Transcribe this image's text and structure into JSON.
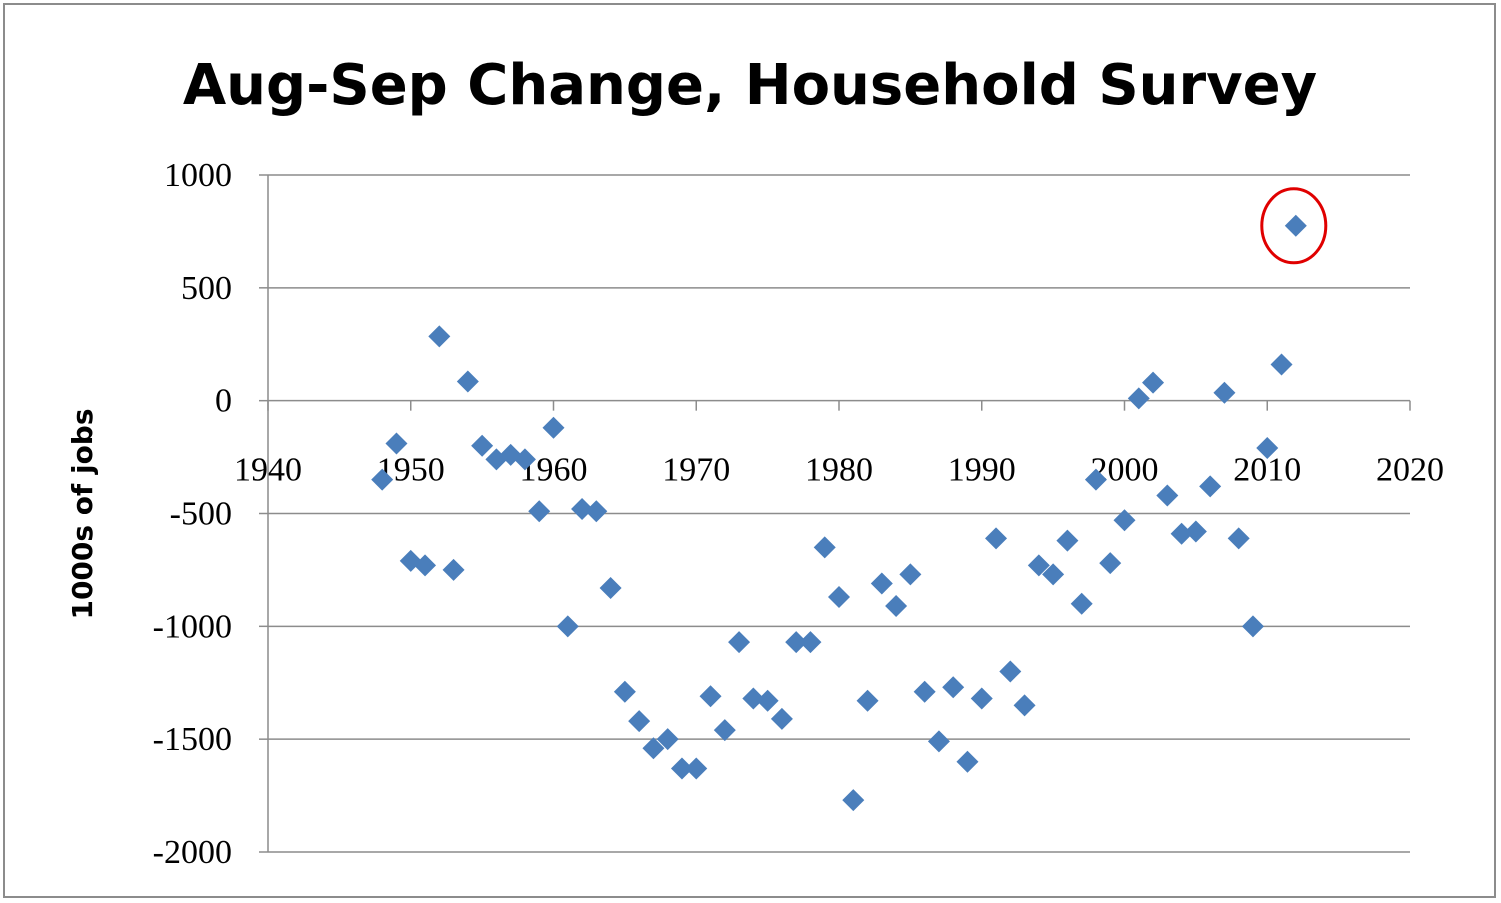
{
  "chart_data": {
    "type": "scatter",
    "title": "Aug-Sep Change, Household Survey",
    "xlabel": "",
    "ylabel": "1000s of jobs",
    "xlim": [
      1940,
      2020
    ],
    "ylim": [
      -2000,
      1000
    ],
    "x_ticks": [
      "1940",
      "1950",
      "1960",
      "1970",
      "1980",
      "1990",
      "2000",
      "2010",
      "2020"
    ],
    "y_ticks": [
      "1000",
      "500",
      "0",
      "-500",
      "-1000",
      "-1500",
      "-2000"
    ],
    "grid": true,
    "legend": "none",
    "marker": "diamond",
    "marker_color": "#4a7ebb",
    "highlight_color": "#e00000",
    "highlighted_point": {
      "x": 2012,
      "y": 775
    },
    "points": [
      {
        "x": 1948,
        "y": -350
      },
      {
        "x": 1949,
        "y": -190
      },
      {
        "x": 1950,
        "y": -710
      },
      {
        "x": 1951,
        "y": -730
      },
      {
        "x": 1952,
        "y": 285
      },
      {
        "x": 1953,
        "y": -750
      },
      {
        "x": 1954,
        "y": 85
      },
      {
        "x": 1955,
        "y": -200
      },
      {
        "x": 1956,
        "y": -260
      },
      {
        "x": 1957,
        "y": -240
      },
      {
        "x": 1958,
        "y": -260
      },
      {
        "x": 1959,
        "y": -490
      },
      {
        "x": 1960,
        "y": -120
      },
      {
        "x": 1961,
        "y": -1000
      },
      {
        "x": 1962,
        "y": -480
      },
      {
        "x": 1963,
        "y": -490
      },
      {
        "x": 1964,
        "y": -830
      },
      {
        "x": 1965,
        "y": -1290
      },
      {
        "x": 1966,
        "y": -1420
      },
      {
        "x": 1967,
        "y": -1540
      },
      {
        "x": 1968,
        "y": -1500
      },
      {
        "x": 1969,
        "y": -1630
      },
      {
        "x": 1970,
        "y": -1630
      },
      {
        "x": 1971,
        "y": -1310
      },
      {
        "x": 1972,
        "y": -1460
      },
      {
        "x": 1973,
        "y": -1070
      },
      {
        "x": 1974,
        "y": -1320
      },
      {
        "x": 1975,
        "y": -1330
      },
      {
        "x": 1976,
        "y": -1410
      },
      {
        "x": 1977,
        "y": -1070
      },
      {
        "x": 1978,
        "y": -1070
      },
      {
        "x": 1979,
        "y": -650
      },
      {
        "x": 1980,
        "y": -870
      },
      {
        "x": 1981,
        "y": -1770
      },
      {
        "x": 1982,
        "y": -1330
      },
      {
        "x": 1983,
        "y": -810
      },
      {
        "x": 1984,
        "y": -910
      },
      {
        "x": 1985,
        "y": -770
      },
      {
        "x": 1986,
        "y": -1290
      },
      {
        "x": 1987,
        "y": -1510
      },
      {
        "x": 1988,
        "y": -1270
      },
      {
        "x": 1989,
        "y": -1600
      },
      {
        "x": 1990,
        "y": -1320
      },
      {
        "x": 1991,
        "y": -610
      },
      {
        "x": 1992,
        "y": -1200
      },
      {
        "x": 1993,
        "y": -1350
      },
      {
        "x": 1994,
        "y": -730
      },
      {
        "x": 1995,
        "y": -770
      },
      {
        "x": 1996,
        "y": -620
      },
      {
        "x": 1997,
        "y": -900
      },
      {
        "x": 1998,
        "y": -350
      },
      {
        "x": 1999,
        "y": -720
      },
      {
        "x": 2000,
        "y": -530
      },
      {
        "x": 2001,
        "y": 10
      },
      {
        "x": 2002,
        "y": 80
      },
      {
        "x": 2003,
        "y": -420
      },
      {
        "x": 2004,
        "y": -590
      },
      {
        "x": 2005,
        "y": -580
      },
      {
        "x": 2006,
        "y": -380
      },
      {
        "x": 2007,
        "y": 35
      },
      {
        "x": 2008,
        "y": -610
      },
      {
        "x": 2009,
        "y": -1000
      },
      {
        "x": 2010,
        "y": -210
      },
      {
        "x": 2011,
        "y": 160
      },
      {
        "x": 2012,
        "y": 775
      }
    ]
  }
}
